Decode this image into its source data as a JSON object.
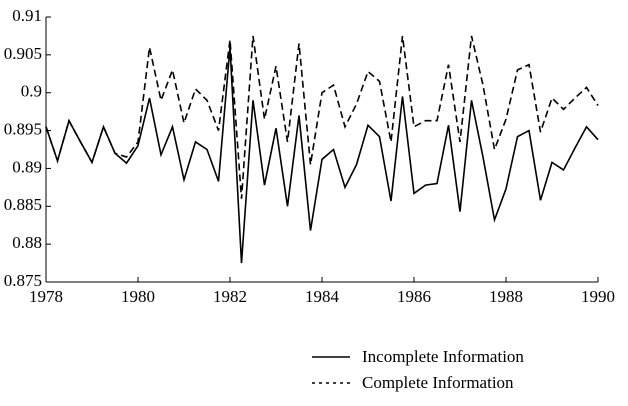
{
  "chart_data": {
    "type": "line",
    "x": [
      1978,
      1978.25,
      1978.5,
      1978.75,
      1979,
      1979.25,
      1979.5,
      1979.75,
      1980,
      1980.25,
      1980.5,
      1980.75,
      1981,
      1981.25,
      1981.5,
      1981.75,
      1982,
      1982.25,
      1982.5,
      1982.75,
      1983,
      1983.25,
      1983.5,
      1983.75,
      1984,
      1984.25,
      1984.5,
      1984.75,
      1985,
      1985.25,
      1985.5,
      1985.75,
      1986,
      1986.25,
      1986.5,
      1986.75,
      1987,
      1987.25,
      1987.5,
      1987.75,
      1988,
      1988.25,
      1988.5,
      1988.75,
      1989,
      1989.25,
      1989.5,
      1989.75,
      1990
    ],
    "series": [
      {
        "name": "Incomplete Information",
        "color": "#000000",
        "dash": "solid",
        "values": [
          0.8955,
          0.891,
          0.8963,
          0.8935,
          0.8908,
          0.8955,
          0.892,
          0.8907,
          0.893,
          0.8993,
          0.8918,
          0.8955,
          0.8885,
          0.8935,
          0.8925,
          0.8883,
          0.906,
          0.8775,
          0.899,
          0.8878,
          0.8953,
          0.885,
          0.897,
          0.8818,
          0.8912,
          0.8925,
          0.8875,
          0.8905,
          0.8957,
          0.8942,
          0.8857,
          0.8995,
          0.8867,
          0.8878,
          0.888,
          0.8957,
          0.8843,
          0.899,
          0.8915,
          0.8832,
          0.8873,
          0.8942,
          0.895,
          0.8858,
          0.8908,
          0.8898,
          0.8927,
          0.8955,
          0.8938
        ]
      },
      {
        "name": "Complete Information",
        "color": "#000000",
        "dash": "dashed",
        "values": [
          0.8955,
          0.891,
          0.8963,
          0.8935,
          0.8908,
          0.8955,
          0.892,
          0.8915,
          0.8935,
          0.906,
          0.899,
          0.903,
          0.896,
          0.9005,
          0.899,
          0.895,
          0.907,
          0.886,
          0.9075,
          0.8965,
          0.9035,
          0.8935,
          0.9065,
          0.8905,
          0.9,
          0.901,
          0.8955,
          0.8985,
          0.9028,
          0.9015,
          0.8935,
          0.9075,
          0.8955,
          0.8963,
          0.8963,
          0.9037,
          0.8935,
          0.9075,
          0.901,
          0.8925,
          0.8965,
          0.903,
          0.9037,
          0.8948,
          0.8993,
          0.8978,
          0.8993,
          0.9007,
          0.8983
        ]
      }
    ],
    "xlim": [
      1978,
      1990
    ],
    "xticks": [
      1978,
      1980,
      1982,
      1984,
      1986,
      1988,
      1990
    ],
    "ylim": [
      0.875,
      0.91
    ],
    "yticks": [
      0.875,
      0.88,
      0.885,
      0.89,
      0.895,
      0.9,
      0.905,
      0.91
    ],
    "legend": "bottom"
  }
}
